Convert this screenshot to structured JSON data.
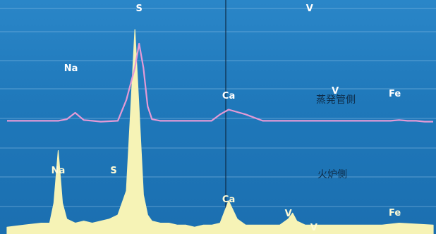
{
  "colors": {
    "background": "#1f78ba",
    "grid": "#8fc2e6",
    "cursor": "#0d2a45",
    "top_trace": "#e49ad6",
    "bottom_trace": "#f6f3b6"
  },
  "chart_data": [
    {
      "type": "line",
      "title": "",
      "xlabel": "",
      "ylabel": "",
      "grid": true,
      "x": [
        0,
        4,
        8,
        12,
        14,
        16,
        18,
        20,
        22,
        26,
        28,
        30,
        31,
        32,
        33,
        34,
        36,
        38,
        40,
        42,
        44,
        48,
        50,
        52,
        56,
        60,
        70,
        80,
        90,
        92,
        94,
        96,
        98,
        100
      ],
      "series": [
        {
          "name": "蒸発管側",
          "values": [
            4,
            4,
            4,
            4,
            6,
            14,
            5,
            4,
            3,
            4,
            30,
            70,
            100,
            70,
            22,
            6,
            4,
            4,
            4,
            4,
            4,
            4,
            12,
            18,
            12,
            4,
            4,
            4,
            4,
            5,
            4,
            4,
            3,
            3
          ]
        }
      ],
      "annotations": [
        {
          "label": "Na",
          "x": 15
        },
        {
          "label": "S",
          "x": 31
        },
        {
          "label": "Ca",
          "x": 52
        },
        {
          "label": "V",
          "x": 71
        },
        {
          "label": "V",
          "x": 77
        },
        {
          "label": "Fe",
          "x": 91
        }
      ]
    },
    {
      "type": "line",
      "title": "",
      "xlabel": "",
      "ylabel": "",
      "grid": true,
      "x": [
        0,
        4,
        8,
        10,
        11,
        12,
        13,
        14,
        16,
        18,
        20,
        24,
        26,
        28,
        29,
        30,
        31,
        32,
        33,
        34,
        36,
        38,
        40,
        42,
        44,
        46,
        48,
        50,
        52,
        54,
        56,
        60,
        64,
        66,
        67,
        68,
        70,
        74,
        76,
        80,
        84,
        88,
        92,
        100
      ],
      "series": [
        {
          "name": "火炉側",
          "values": [
            2,
            3,
            4,
            4,
            14,
            40,
            14,
            6,
            4,
            5,
            4,
            6,
            8,
            20,
            60,
            100,
            60,
            18,
            8,
            5,
            4,
            4,
            3,
            3,
            2,
            3,
            3,
            4,
            15,
            6,
            3,
            3,
            3,
            6,
            9,
            5,
            3,
            3,
            3,
            3,
            3,
            3,
            4,
            3
          ]
        }
      ],
      "annotations": [
        {
          "label": "Na",
          "x": 12
        },
        {
          "label": "S",
          "x": 25
        },
        {
          "label": "Ca",
          "x": 52
        },
        {
          "label": "V",
          "x": 66
        },
        {
          "label": "V",
          "x": 72
        },
        {
          "label": "Fe",
          "x": 91
        }
      ]
    }
  ]
}
